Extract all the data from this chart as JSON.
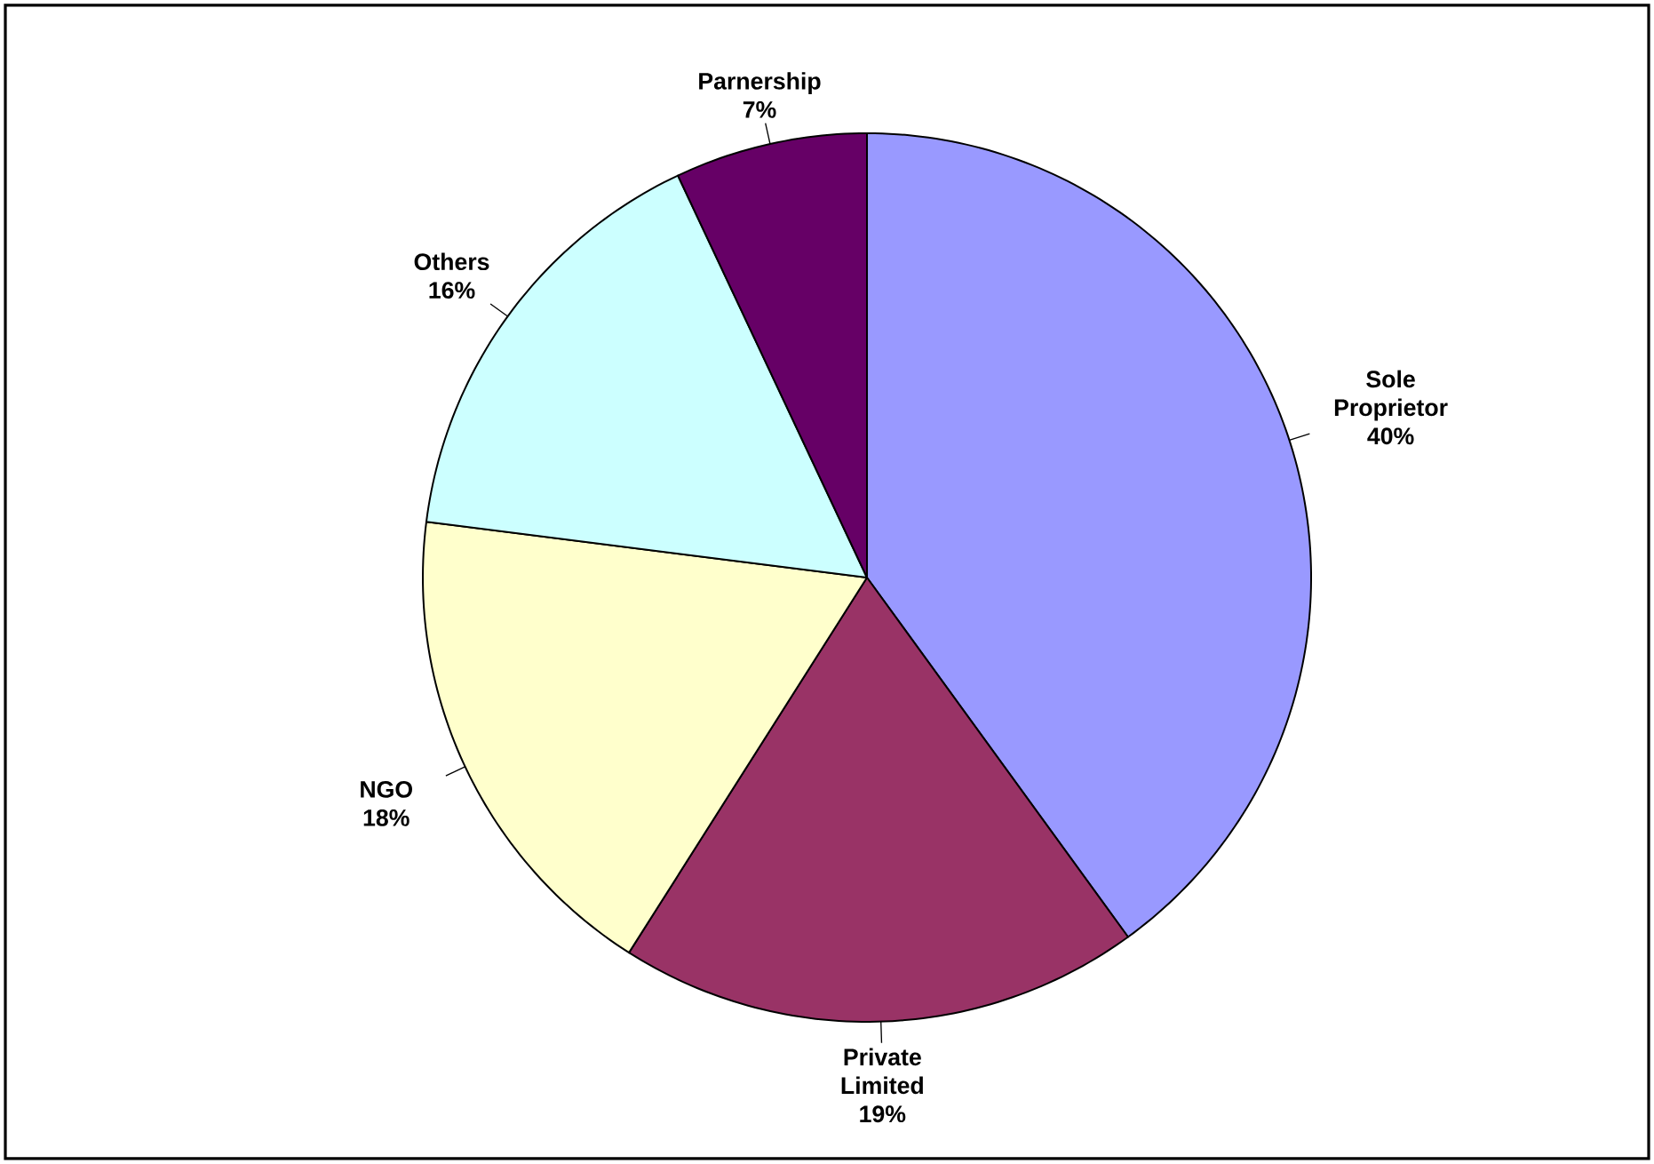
{
  "chart_data": {
    "type": "pie",
    "categories": [
      "Sole Proprietor",
      "Private Limited",
      "NGO",
      "Others",
      "Parnership"
    ],
    "values": [
      40,
      19,
      18,
      16,
      7
    ],
    "value_labels": [
      "40%",
      "19%",
      "18%",
      "16%",
      "7%"
    ],
    "colors": [
      "#9999ff",
      "#993366",
      "#ffffcc",
      "#ccffff",
      "#660066"
    ]
  }
}
